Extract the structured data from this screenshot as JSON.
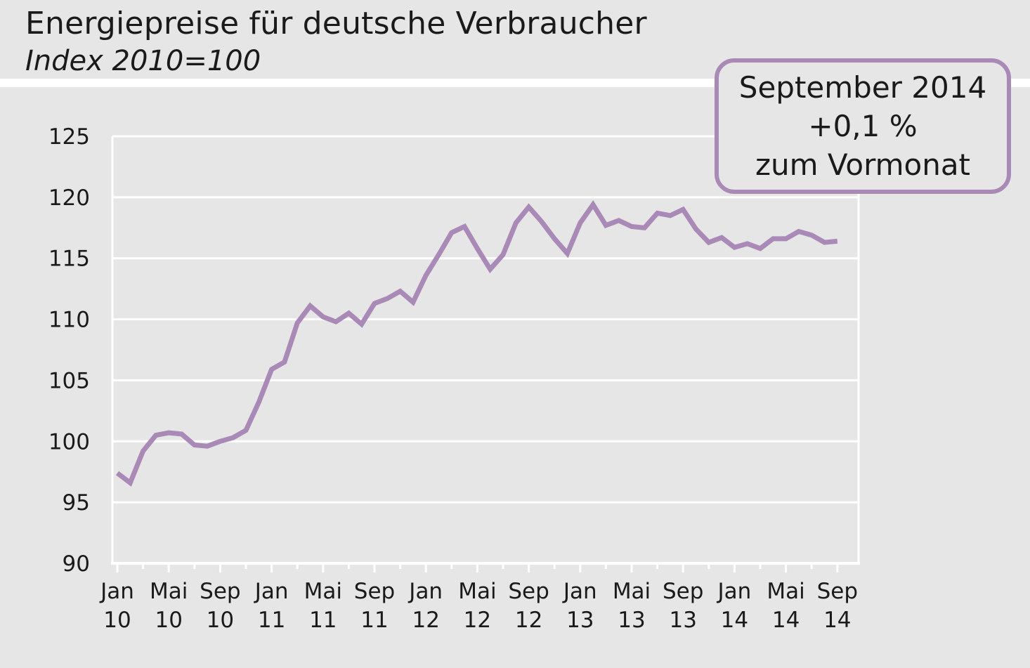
{
  "title": "Energiepreise für deutsche Verbraucher",
  "subtitle": "Index 2010=100",
  "callout": {
    "line1": "September 2014",
    "line2": "+0,1 %",
    "line3": "zum Vormonat"
  },
  "colors": {
    "background": "#e6e6e6",
    "series": "#a98ab7",
    "grid": "#ffffff",
    "text": "#1a1a1a"
  },
  "chart_data": {
    "type": "line",
    "title": "Energiepreise für deutsche Verbraucher",
    "subtitle": "Index 2010=100",
    "ylim": [
      90,
      125
    ],
    "yticks": [
      90,
      95,
      100,
      105,
      110,
      115,
      120,
      125
    ],
    "grid": true,
    "xtick_labels": [
      {
        "month": "Jan",
        "year": "10"
      },
      {
        "month": "Mai",
        "year": "10"
      },
      {
        "month": "Sep",
        "year": "10"
      },
      {
        "month": "Jan",
        "year": "11"
      },
      {
        "month": "Mai",
        "year": "11"
      },
      {
        "month": "Sep",
        "year": "11"
      },
      {
        "month": "Jan",
        "year": "12"
      },
      {
        "month": "Mai",
        "year": "12"
      },
      {
        "month": "Sep",
        "year": "12"
      },
      {
        "month": "Jan",
        "year": "13"
      },
      {
        "month": "Mai",
        "year": "13"
      },
      {
        "month": "Sep",
        "year": "13"
      },
      {
        "month": "Jan",
        "year": "14"
      },
      {
        "month": "Mai",
        "year": "14"
      },
      {
        "month": "Sep",
        "year": "14"
      }
    ],
    "start_period": "Jan 2010",
    "end_period": "Sep 2014",
    "series": [
      {
        "values": [
          97.4,
          96.6,
          99.2,
          100.5,
          100.7,
          100.6,
          99.7,
          99.6,
          100.0,
          100.3,
          100.9,
          103.2,
          105.9,
          106.5,
          109.7,
          111.1,
          110.2,
          109.8,
          110.5,
          109.6,
          111.3,
          111.7,
          112.3,
          111.4,
          113.6,
          115.3,
          117.1,
          117.6,
          115.8,
          114.1,
          115.3,
          117.9,
          119.2,
          118.0,
          116.6,
          115.4,
          117.9,
          119.4,
          117.7,
          118.1,
          117.6,
          117.5,
          118.7,
          118.5,
          119.0,
          117.4,
          116.3,
          116.7,
          115.9,
          116.2,
          115.8,
          116.6,
          116.6,
          117.2,
          116.9,
          116.3,
          116.4
        ]
      }
    ]
  }
}
